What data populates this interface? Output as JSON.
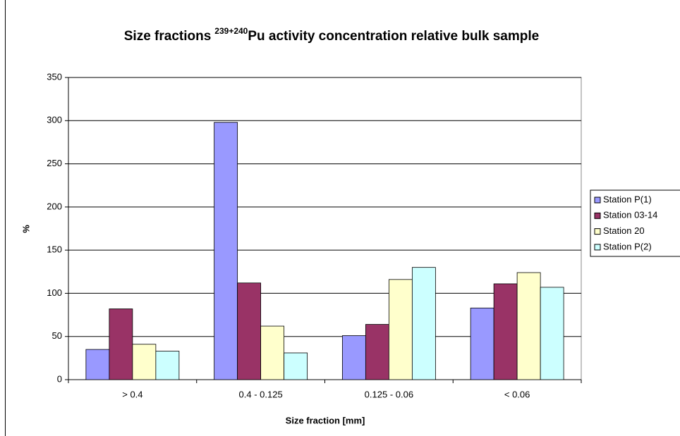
{
  "chart_data": {
    "type": "bar",
    "title": "Size fractions",
    "title_superscript": "239+240",
    "title_rest": "Pu activity concentration relative bulk sample",
    "xlabel": "Size fraction [mm]",
    "ylabel": "%",
    "categories": [
      "> 0.4",
      "0.4 - 0.125",
      "0.125 - 0.06",
      "< 0.06"
    ],
    "series": [
      {
        "name": "Station P(1)",
        "color": "#9999ff",
        "values": [
          35,
          298,
          51,
          83
        ]
      },
      {
        "name": "Station 03-14",
        "color": "#993366",
        "values": [
          82,
          112,
          64,
          111
        ]
      },
      {
        "name": "Station 20",
        "color": "#ffffcc",
        "values": [
          41,
          62,
          116,
          124
        ]
      },
      {
        "name": "Station P(2)",
        "color": "#ccffff",
        "values": [
          33,
          31,
          130,
          107
        ]
      }
    ],
    "ylim": [
      0,
      350
    ],
    "yticks": [
      0,
      50,
      100,
      150,
      200,
      250,
      300,
      350
    ],
    "grid": true,
    "legend": "right"
  }
}
